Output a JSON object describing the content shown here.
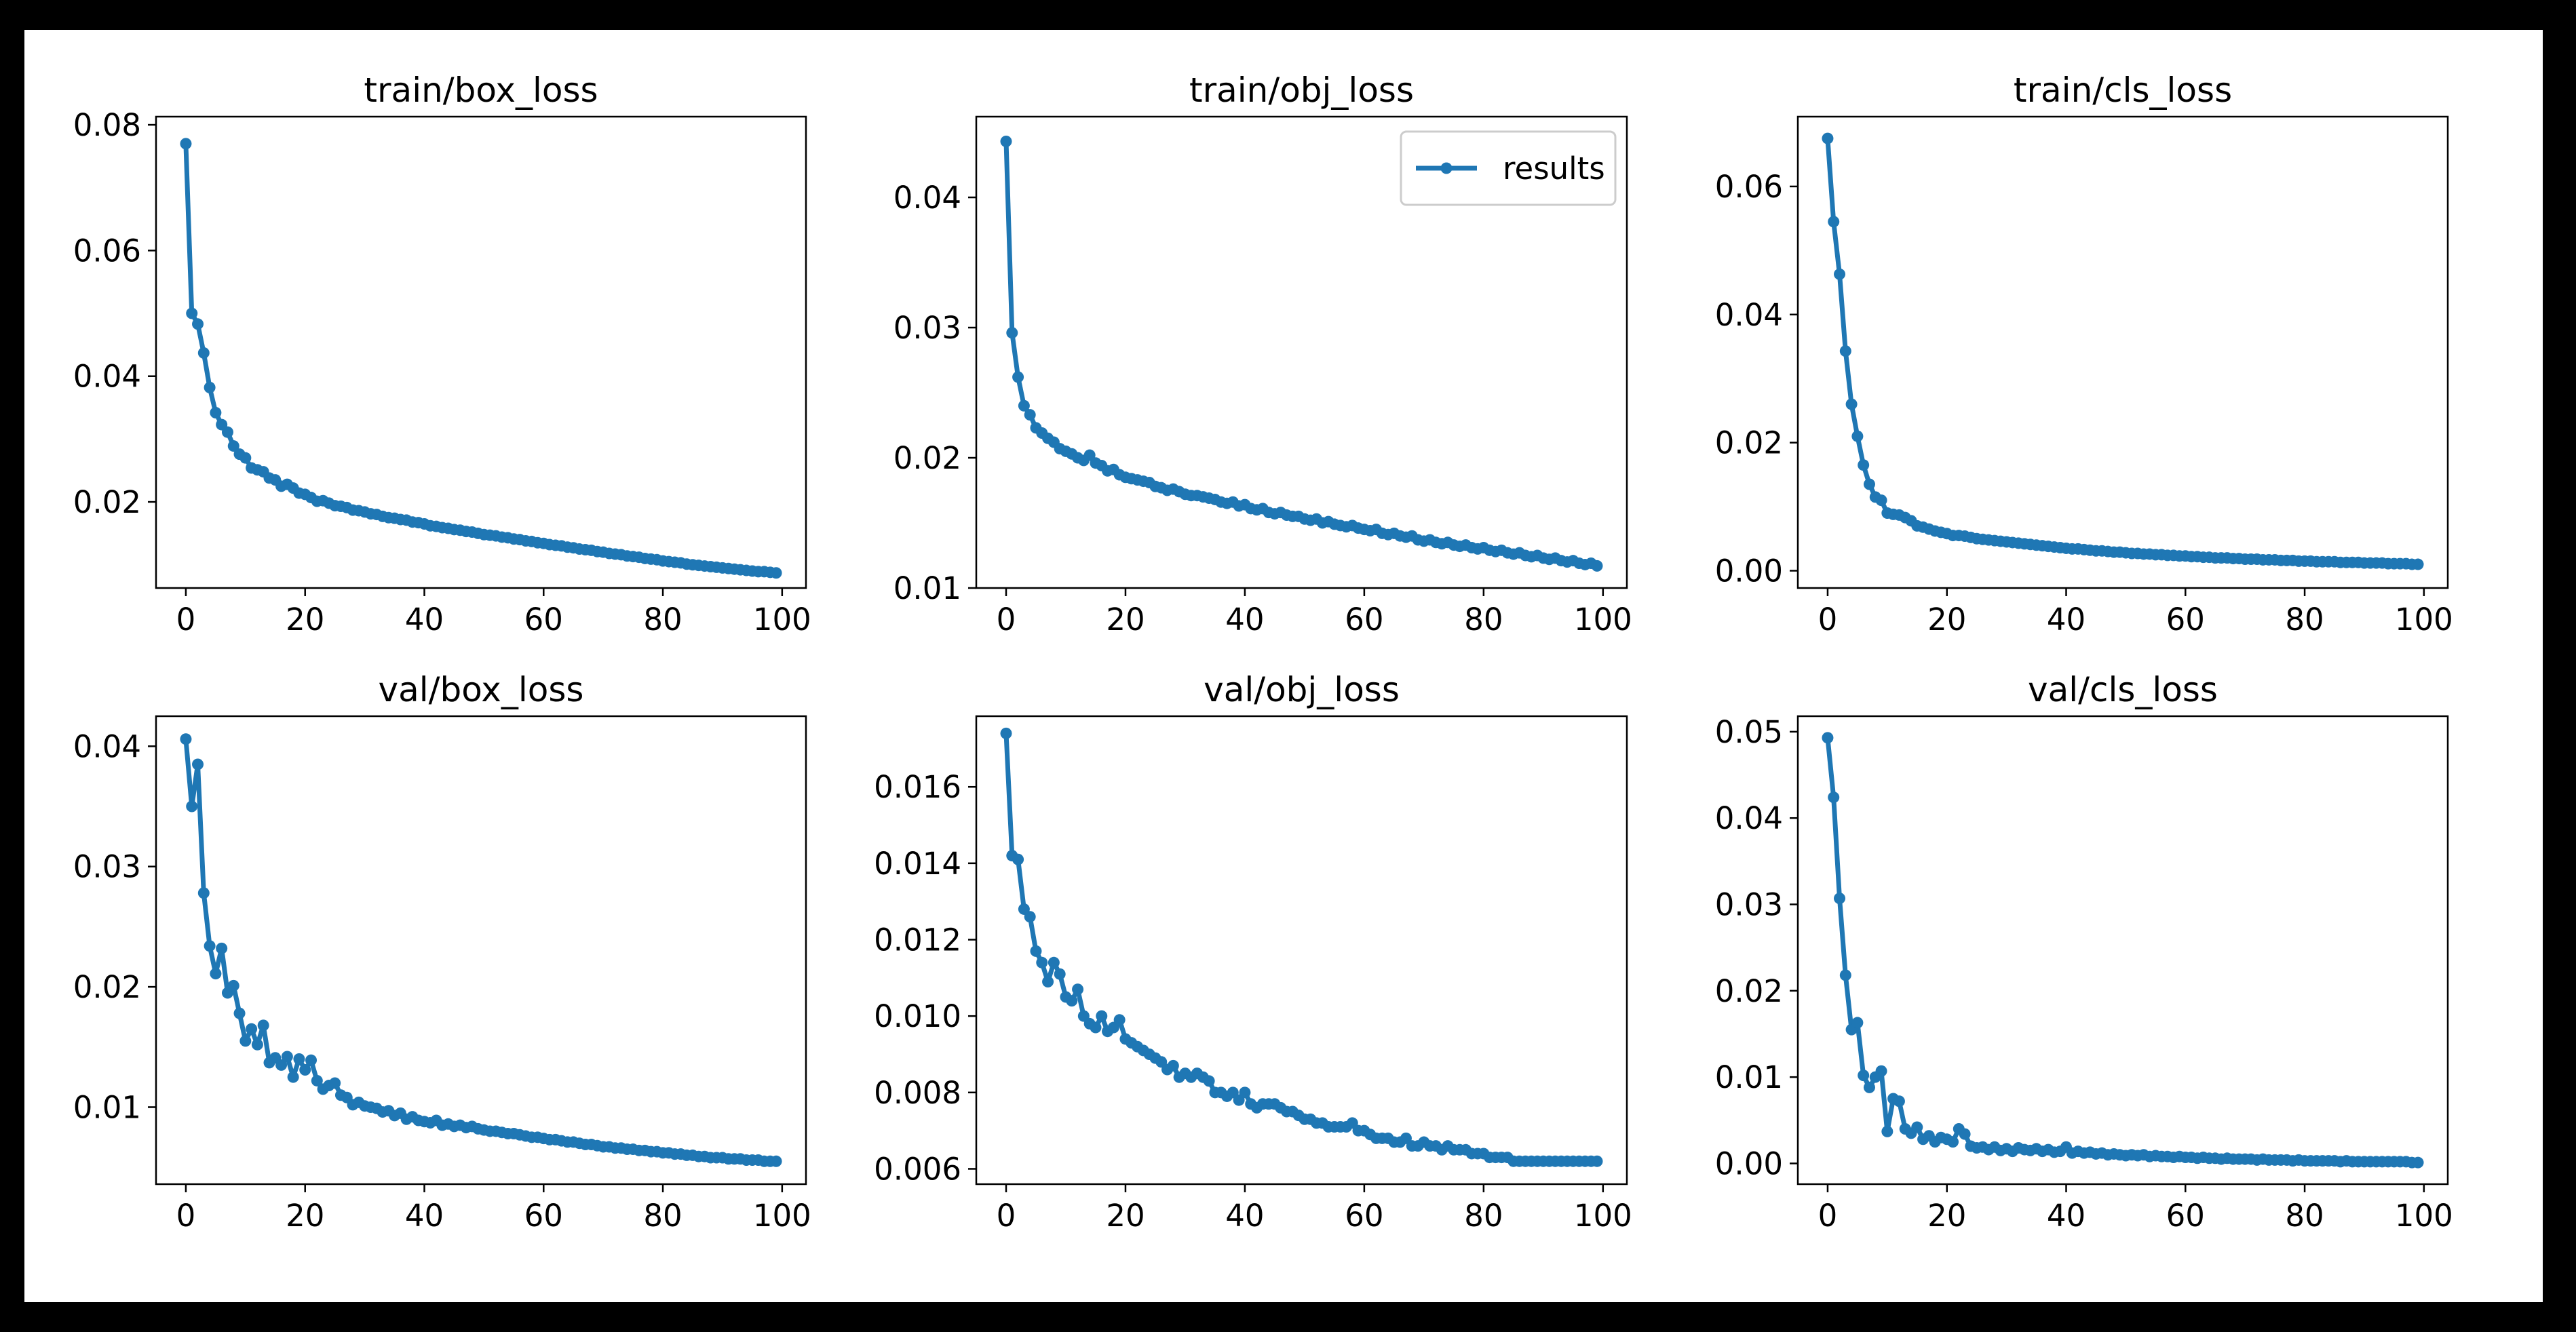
{
  "chart_data": [
    {
      "type": "line",
      "title": "train/box_loss",
      "xlabel": "",
      "ylabel": "",
      "xlim": [
        -5,
        104
      ],
      "ylim": [
        0.0063,
        0.0813
      ],
      "xticks": [
        0,
        20,
        40,
        60,
        80,
        100
      ],
      "yticks": [
        0.02,
        0.04,
        0.06,
        0.08
      ],
      "yticklabels": [
        "0.02",
        "0.04",
        "0.06",
        "0.08"
      ],
      "series": [
        {
          "name": "results",
          "x": "epoch 0-99",
          "values": [
            0.077,
            0.05,
            0.0483,
            0.0437,
            0.0382,
            0.0342,
            0.0323,
            0.0311,
            0.0289,
            0.0276,
            0.027,
            0.0254,
            0.0251,
            0.0248,
            0.0238,
            0.0235,
            0.0225,
            0.0228,
            0.0222,
            0.0214,
            0.0212,
            0.0207,
            0.0201,
            0.0202,
            0.0198,
            0.0194,
            0.0193,
            0.0191,
            0.0187,
            0.0186,
            0.0184,
            0.0181,
            0.018,
            0.0177,
            0.0175,
            0.0174,
            0.0172,
            0.0171,
            0.0168,
            0.0167,
            0.0165,
            0.0162,
            0.0161,
            0.0159,
            0.0158,
            0.0156,
            0.0155,
            0.0153,
            0.0152,
            0.015,
            0.0148,
            0.0147,
            0.0146,
            0.0144,
            0.0143,
            0.0141,
            0.014,
            0.0138,
            0.0137,
            0.0135,
            0.0134,
            0.0132,
            0.0131,
            0.013,
            0.0128,
            0.0127,
            0.0125,
            0.0124,
            0.0123,
            0.0121,
            0.012,
            0.0118,
            0.0117,
            0.0116,
            0.0114,
            0.0113,
            0.0112,
            0.011,
            0.0109,
            0.0108,
            0.0106,
            0.0105,
            0.0104,
            0.0103,
            0.0101,
            0.01,
            0.0099,
            0.0098,
            0.0097,
            0.0096,
            0.0095,
            0.0094,
            0.0093,
            0.0092,
            0.0091,
            0.009,
            0.0089,
            0.0089,
            0.0088,
            0.0087
          ]
        }
      ]
    },
    {
      "type": "line",
      "title": "train/obj_loss",
      "xlabel": "",
      "ylabel": "",
      "xlim": [
        -5,
        104
      ],
      "ylim": [
        0.01,
        0.0462
      ],
      "xticks": [
        0,
        20,
        40,
        60,
        80,
        100
      ],
      "yticks": [
        0.01,
        0.02,
        0.03,
        0.04
      ],
      "yticklabels": [
        "0.01",
        "0.02",
        "0.03",
        "0.04"
      ],
      "legend": {
        "label": "results",
        "loc": "upper right"
      },
      "series": [
        {
          "name": "results",
          "x": "epoch 0-99",
          "values": [
            0.0443,
            0.0296,
            0.0262,
            0.024,
            0.0233,
            0.0223,
            0.0219,
            0.0215,
            0.0212,
            0.0207,
            0.0205,
            0.0203,
            0.02,
            0.0198,
            0.0202,
            0.0196,
            0.0194,
            0.019,
            0.0191,
            0.0187,
            0.0185,
            0.0184,
            0.0183,
            0.0182,
            0.0181,
            0.0178,
            0.0177,
            0.0175,
            0.0176,
            0.0174,
            0.0172,
            0.0171,
            0.0171,
            0.017,
            0.0169,
            0.0168,
            0.0166,
            0.0165,
            0.0166,
            0.0163,
            0.0164,
            0.0161,
            0.016,
            0.0161,
            0.0158,
            0.0157,
            0.0158,
            0.0156,
            0.0155,
            0.0155,
            0.0153,
            0.0152,
            0.0153,
            0.015,
            0.0151,
            0.0149,
            0.0148,
            0.0147,
            0.0148,
            0.0146,
            0.0145,
            0.0144,
            0.0145,
            0.0142,
            0.0141,
            0.0142,
            0.014,
            0.0139,
            0.014,
            0.0137,
            0.0136,
            0.0137,
            0.0135,
            0.0134,
            0.0135,
            0.0133,
            0.0132,
            0.0133,
            0.0131,
            0.013,
            0.0131,
            0.0129,
            0.0128,
            0.0129,
            0.0127,
            0.0126,
            0.0127,
            0.0125,
            0.0124,
            0.0125,
            0.0123,
            0.0122,
            0.0123,
            0.0121,
            0.012,
            0.0121,
            0.0119,
            0.0118,
            0.0119,
            0.0117
          ]
        }
      ]
    },
    {
      "type": "line",
      "title": "train/cls_loss",
      "xlabel": "",
      "ylabel": "",
      "xlim": [
        -5,
        104
      ],
      "ylim": [
        -0.0027,
        0.0709
      ],
      "xticks": [
        0,
        20,
        40,
        60,
        80,
        100
      ],
      "yticks": [
        0.0,
        0.02,
        0.04,
        0.06
      ],
      "yticklabels": [
        "0.00",
        "0.02",
        "0.04",
        "0.06"
      ],
      "series": [
        {
          "name": "results",
          "x": "epoch 0-99",
          "values": [
            0.0675,
            0.0545,
            0.0463,
            0.0343,
            0.026,
            0.021,
            0.0165,
            0.0135,
            0.0115,
            0.011,
            0.009,
            0.0088,
            0.0087,
            0.0083,
            0.0078,
            0.007,
            0.0068,
            0.0065,
            0.0062,
            0.006,
            0.0058,
            0.0055,
            0.0055,
            0.0054,
            0.0052,
            0.005,
            0.0049,
            0.0048,
            0.0047,
            0.0046,
            0.0045,
            0.0044,
            0.0043,
            0.0042,
            0.0041,
            0.004,
            0.0039,
            0.0038,
            0.0037,
            0.0036,
            0.0035,
            0.0034,
            0.0034,
            0.0033,
            0.0032,
            0.0031,
            0.0031,
            0.003,
            0.0029,
            0.0029,
            0.0028,
            0.0027,
            0.0027,
            0.0026,
            0.0026,
            0.0025,
            0.0025,
            0.0024,
            0.0024,
            0.0023,
            0.0023,
            0.0022,
            0.0022,
            0.0021,
            0.0021,
            0.002,
            0.002,
            0.002,
            0.0019,
            0.0019,
            0.0018,
            0.0018,
            0.0018,
            0.0017,
            0.0017,
            0.0017,
            0.0016,
            0.0016,
            0.0016,
            0.0015,
            0.0015,
            0.0015,
            0.0014,
            0.0014,
            0.0014,
            0.0014,
            0.0013,
            0.0013,
            0.0013,
            0.0013,
            0.0012,
            0.0012,
            0.0012,
            0.0012,
            0.0011,
            0.0011,
            0.0011,
            0.0011,
            0.001,
            0.001
          ]
        }
      ]
    },
    {
      "type": "line",
      "title": "val/box_loss",
      "xlabel": "",
      "ylabel": "",
      "xlim": [
        -5,
        104
      ],
      "ylim": [
        0.0036,
        0.0425
      ],
      "xticks": [
        0,
        20,
        40,
        60,
        80,
        100
      ],
      "yticks": [
        0.01,
        0.02,
        0.03,
        0.04
      ],
      "yticklabels": [
        "0.01",
        "0.02",
        "0.03",
        "0.04"
      ],
      "series": [
        {
          "name": "results",
          "x": "epoch 0-99",
          "values": [
            0.0406,
            0.035,
            0.0385,
            0.0278,
            0.0234,
            0.0211,
            0.0232,
            0.0195,
            0.0201,
            0.0178,
            0.0155,
            0.0165,
            0.0152,
            0.0168,
            0.0137,
            0.0141,
            0.0135,
            0.0142,
            0.0125,
            0.014,
            0.0131,
            0.0139,
            0.0122,
            0.0115,
            0.0118,
            0.012,
            0.011,
            0.0108,
            0.0102,
            0.0104,
            0.0101,
            0.01,
            0.0099,
            0.0096,
            0.0097,
            0.0093,
            0.0095,
            0.009,
            0.0092,
            0.0089,
            0.0088,
            0.0087,
            0.0089,
            0.0085,
            0.0086,
            0.0084,
            0.0085,
            0.0083,
            0.0084,
            0.0082,
            0.0081,
            0.008,
            0.008,
            0.0079,
            0.0078,
            0.0078,
            0.0077,
            0.0076,
            0.0075,
            0.0075,
            0.0074,
            0.0073,
            0.0073,
            0.0072,
            0.0071,
            0.0071,
            0.007,
            0.0069,
            0.0069,
            0.0068,
            0.0067,
            0.0067,
            0.0066,
            0.0066,
            0.0065,
            0.0065,
            0.0064,
            0.0064,
            0.0063,
            0.0063,
            0.0062,
            0.0062,
            0.0061,
            0.0061,
            0.006,
            0.006,
            0.0059,
            0.0059,
            0.0058,
            0.0058,
            0.0058,
            0.0057,
            0.0057,
            0.0057,
            0.0056,
            0.0056,
            0.0056,
            0.0055,
            0.0055,
            0.0055
          ]
        }
      ]
    },
    {
      "type": "line",
      "title": "val/obj_loss",
      "xlabel": "",
      "ylabel": "",
      "xlim": [
        -5,
        104
      ],
      "ylim": [
        0.0056,
        0.01785
      ],
      "xticks": [
        0,
        20,
        40,
        60,
        80,
        100
      ],
      "yticks": [
        0.006,
        0.008,
        0.01,
        0.012,
        0.014,
        0.016
      ],
      "yticklabels": [
        "0.006",
        "0.008",
        "0.010",
        "0.012",
        "0.014",
        "0.016"
      ],
      "series": [
        {
          "name": "results",
          "x": "epoch 0-99",
          "values": [
            0.0174,
            0.0142,
            0.0141,
            0.0128,
            0.0126,
            0.0117,
            0.0114,
            0.0109,
            0.0114,
            0.0111,
            0.0105,
            0.0104,
            0.0107,
            0.01,
            0.0098,
            0.0097,
            0.01,
            0.0096,
            0.0097,
            0.0099,
            0.0094,
            0.0093,
            0.0092,
            0.0091,
            0.009,
            0.0089,
            0.0088,
            0.0086,
            0.0087,
            0.0084,
            0.0085,
            0.0084,
            0.0085,
            0.0084,
            0.0083,
            0.008,
            0.008,
            0.0079,
            0.008,
            0.0078,
            0.008,
            0.0077,
            0.0076,
            0.0077,
            0.0077,
            0.0077,
            0.0076,
            0.0075,
            0.0075,
            0.0074,
            0.0073,
            0.0073,
            0.0072,
            0.0072,
            0.0071,
            0.0071,
            0.0071,
            0.0071,
            0.0072,
            0.007,
            0.007,
            0.0069,
            0.0068,
            0.0068,
            0.0068,
            0.0067,
            0.0067,
            0.0068,
            0.0066,
            0.0066,
            0.0067,
            0.0066,
            0.0066,
            0.0065,
            0.0066,
            0.0065,
            0.0065,
            0.0065,
            0.0064,
            0.0064,
            0.0064,
            0.0063,
            0.0063,
            0.0063,
            0.0063,
            0.0062,
            0.0062,
            0.0062,
            0.0062,
            0.0062,
            0.0062,
            0.0062,
            0.0062,
            0.0062,
            0.0062,
            0.0062,
            0.0062,
            0.0062,
            0.0062,
            0.0062
          ]
        }
      ]
    },
    {
      "type": "line",
      "title": "val/cls_loss",
      "xlabel": "",
      "ylabel": "",
      "xlim": [
        -5,
        104
      ],
      "ylim": [
        -0.0024,
        0.0518
      ],
      "xticks": [
        0,
        20,
        40,
        60,
        80,
        100
      ],
      "yticks": [
        0.0,
        0.01,
        0.02,
        0.03,
        0.04,
        0.05
      ],
      "yticklabels": [
        "0.00",
        "0.01",
        "0.02",
        "0.03",
        "0.04",
        "0.05"
      ],
      "series": [
        {
          "name": "results",
          "x": "epoch 0-99",
          "values": [
            0.0493,
            0.0424,
            0.0307,
            0.0218,
            0.0155,
            0.0163,
            0.0102,
            0.0088,
            0.01,
            0.0107,
            0.0037,
            0.0075,
            0.0072,
            0.004,
            0.0035,
            0.0042,
            0.0028,
            0.0032,
            0.0025,
            0.003,
            0.0028,
            0.0025,
            0.004,
            0.0034,
            0.002,
            0.0018,
            0.0019,
            0.0016,
            0.0019,
            0.0015,
            0.0017,
            0.0014,
            0.0018,
            0.0016,
            0.0015,
            0.0017,
            0.0014,
            0.0016,
            0.0013,
            0.0014,
            0.0019,
            0.0012,
            0.0014,
            0.0012,
            0.0013,
            0.0011,
            0.0012,
            0.001,
            0.0011,
            0.001,
            0.0009,
            0.001,
            0.0009,
            0.001,
            0.0008,
            0.0009,
            0.0008,
            0.0008,
            0.0007,
            0.0008,
            0.0007,
            0.0007,
            0.0006,
            0.0007,
            0.0006,
            0.0006,
            0.0005,
            0.0006,
            0.0005,
            0.0005,
            0.0005,
            0.0005,
            0.0004,
            0.0005,
            0.0004,
            0.0004,
            0.0004,
            0.0004,
            0.0003,
            0.0004,
            0.0003,
            0.0003,
            0.0003,
            0.0003,
            0.0003,
            0.0003,
            0.0002,
            0.0003,
            0.0002,
            0.0002,
            0.0002,
            0.0002,
            0.0002,
            0.0002,
            0.0002,
            0.0002,
            0.0002,
            0.0002,
            0.0001,
            0.0001
          ]
        }
      ]
    }
  ],
  "colors": {
    "series": "#1f77b4",
    "axes": "#000000",
    "background": "#ffffff",
    "frame": "#000000",
    "legend_border": "#cccccc"
  }
}
